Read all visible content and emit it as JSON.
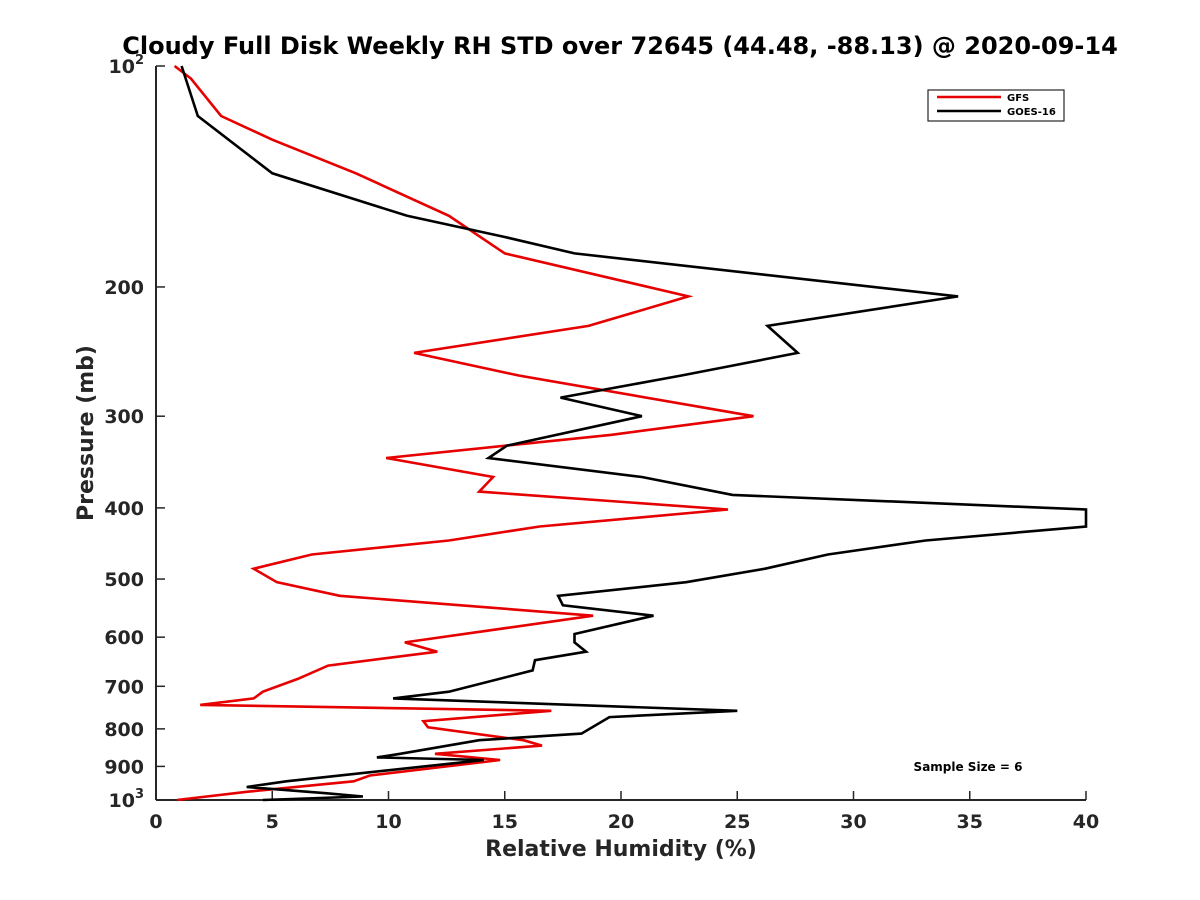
{
  "chart_data": {
    "type": "line",
    "title": "Cloudy Full Disk Weekly RH STD over 72645 (44.48, -88.13) @ 2020-09-14",
    "xlabel": "Relative Humidity (%)",
    "ylabel": "Pressure (mb)",
    "xlim": [
      0,
      40
    ],
    "ylim": [
      100,
      1000
    ],
    "y_scale": "log",
    "y_reversed": true,
    "x_ticks": [
      "0",
      "5",
      "10",
      "15",
      "20",
      "25",
      "30",
      "35",
      "40"
    ],
    "y_ticks": [
      {
        "value": 100,
        "base": "10",
        "exp": "2"
      },
      {
        "value": 200,
        "label": "200"
      },
      {
        "value": 300,
        "label": "300"
      },
      {
        "value": 400,
        "label": "400"
      },
      {
        "value": 500,
        "label": "500"
      },
      {
        "value": 600,
        "label": "600"
      },
      {
        "value": 700,
        "label": "700"
      },
      {
        "value": 800,
        "label": "800"
      },
      {
        "value": 900,
        "label": "900"
      },
      {
        "value": 1000,
        "base": "10",
        "exp": "3"
      }
    ],
    "grid": false,
    "legend_position": "top-right",
    "annotation": "Sample Size = 6",
    "series": [
      {
        "name": "GFS",
        "color": "#e60000",
        "points": [
          [
            0.8,
            100
          ],
          [
            1.5,
            104
          ],
          [
            2.8,
            117
          ],
          [
            5.0,
            126
          ],
          [
            8.6,
            140
          ],
          [
            12.6,
            160
          ],
          [
            15.0,
            180
          ],
          [
            22.9,
            206
          ],
          [
            18.6,
            226
          ],
          [
            11.1,
            246
          ],
          [
            15.6,
            264
          ],
          [
            25.7,
            300
          ],
          [
            19.6,
            318
          ],
          [
            9.9,
            342
          ],
          [
            14.5,
            363
          ],
          [
            13.9,
            380
          ],
          [
            24.6,
            402
          ],
          [
            16.5,
            424
          ],
          [
            12.6,
            443
          ],
          [
            6.7,
            463
          ],
          [
            4.2,
            484
          ],
          [
            5.2,
            505
          ],
          [
            7.9,
            527
          ],
          [
            18.8,
            561
          ],
          [
            10.7,
            610
          ],
          [
            12.1,
            628
          ],
          [
            7.4,
            656
          ],
          [
            6.1,
            684
          ],
          [
            4.6,
            712
          ],
          [
            4.2,
            727
          ],
          [
            1.9,
            742
          ],
          [
            17.0,
            756
          ],
          [
            11.5,
            781
          ],
          [
            11.7,
            796
          ],
          [
            15.8,
            829
          ],
          [
            16.6,
            843
          ],
          [
            12.0,
            865
          ],
          [
            14.8,
            882
          ],
          [
            9.2,
            926
          ],
          [
            8.5,
            943
          ],
          [
            4.0,
            974
          ],
          [
            0.9,
            1000
          ]
        ]
      },
      {
        "name": "GOES-16",
        "color": "#000000",
        "points": [
          [
            1.1,
            100
          ],
          [
            1.8,
            117
          ],
          [
            5.0,
            140
          ],
          [
            10.8,
            160
          ],
          [
            15.0,
            171
          ],
          [
            18.0,
            180
          ],
          [
            34.5,
            206
          ],
          [
            26.3,
            226
          ],
          [
            27.6,
            246
          ],
          [
            22.6,
            264
          ],
          [
            17.4,
            283
          ],
          [
            20.9,
            300
          ],
          [
            15.1,
            329
          ],
          [
            14.3,
            342
          ],
          [
            20.9,
            363
          ],
          [
            24.8,
            384
          ],
          [
            40.0,
            402
          ],
          [
            40.0,
            424
          ],
          [
            33.1,
            443
          ],
          [
            28.9,
            463
          ],
          [
            26.2,
            484
          ],
          [
            22.8,
            505
          ],
          [
            17.3,
            527
          ],
          [
            17.5,
            543
          ],
          [
            21.4,
            561
          ],
          [
            18.0,
            594
          ],
          [
            18.0,
            610
          ],
          [
            18.5,
            628
          ],
          [
            16.3,
            645
          ],
          [
            16.2,
            666
          ],
          [
            12.6,
            712
          ],
          [
            10.2,
            727
          ],
          [
            25.0,
            756
          ],
          [
            19.5,
            771
          ],
          [
            18.3,
            812
          ],
          [
            13.9,
            829
          ],
          [
            10.5,
            865
          ],
          [
            9.5,
            875
          ],
          [
            14.1,
            882
          ],
          [
            5.6,
            943
          ],
          [
            3.9,
            960
          ],
          [
            7.3,
            979
          ],
          [
            8.9,
            989
          ],
          [
            4.6,
            1000
          ]
        ]
      }
    ]
  }
}
